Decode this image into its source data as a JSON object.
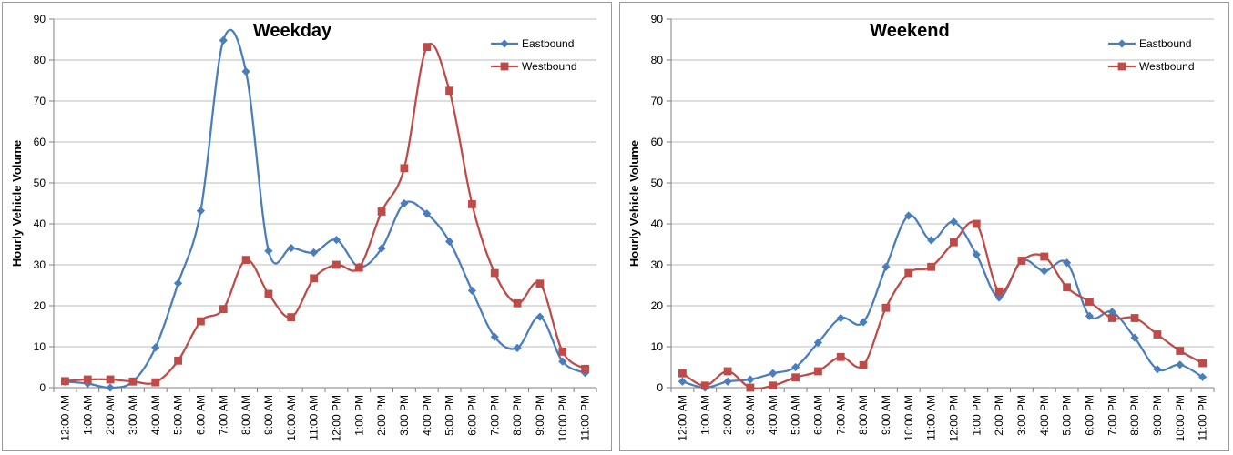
{
  "chart_data": [
    {
      "type": "line",
      "title": "Weekday",
      "ylabel": "Hourly Vehicle Volume",
      "xlabel": "",
      "ylim": [
        0,
        90
      ],
      "yticks": [
        0,
        10,
        20,
        30,
        40,
        50,
        60,
        70,
        80,
        90
      ],
      "grid": true,
      "smooth": true,
      "legend_position": "top-right",
      "categories": [
        "12:00 AM",
        "1:00 AM",
        "2:00 AM",
        "3:00 AM",
        "4:00 AM",
        "5:00 AM",
        "6:00 AM",
        "7:00 AM",
        "8:00 AM",
        "9:00 AM",
        "10:00 AM",
        "11:00 AM",
        "12:00 PM",
        "1:00 PM",
        "2:00 PM",
        "3:00 PM",
        "4:00 PM",
        "5:00 PM",
        "6:00 PM",
        "7:00 PM",
        "8:00 PM",
        "9:00 PM",
        "10:00 PM",
        "11:00 PM"
      ],
      "series": [
        {
          "name": "Eastbound",
          "color": "#4a7ebb",
          "marker": "diamond",
          "values": [
            1.5,
            1,
            0,
            1.5,
            9.8,
            25.5,
            43.2,
            84.8,
            77.2,
            33.4,
            34.1,
            33,
            36.1,
            29.5,
            34,
            45,
            42.5,
            35.7,
            23.7,
            12.4,
            9.7,
            17.3,
            6.4,
            3.6
          ]
        },
        {
          "name": "Westbound",
          "color": "#be4b48",
          "marker": "square",
          "values": [
            1.6,
            2,
            2,
            1.5,
            1.3,
            6.6,
            16.2,
            19.2,
            31.2,
            22.9,
            17.2,
            26.7,
            30,
            29.3,
            43,
            53.6,
            83.2,
            72.5,
            44.8,
            28,
            20.6,
            25.4,
            8.8,
            4.6
          ]
        }
      ]
    },
    {
      "type": "line",
      "title": "Weekend",
      "ylabel": "Hourly Vehicle Volume",
      "xlabel": "",
      "ylim": [
        0,
        90
      ],
      "yticks": [
        0,
        10,
        20,
        30,
        40,
        50,
        60,
        70,
        80,
        90
      ],
      "grid": true,
      "smooth": true,
      "legend_position": "top-right",
      "categories": [
        "12:00 AM",
        "1:00 AM",
        "2:00 AM",
        "3:00 AM",
        "4:00 AM",
        "5:00 AM",
        "6:00 AM",
        "7:00 AM",
        "8:00 AM",
        "9:00 AM",
        "10:00 AM",
        "11:00 AM",
        "12:00 PM",
        "1:00 PM",
        "2:00 PM",
        "3:00 PM",
        "4:00 PM",
        "5:00 PM",
        "6:00 PM",
        "7:00 PM",
        "8:00 PM",
        "9:00 PM",
        "10:00 PM",
        "11:00 PM"
      ],
      "series": [
        {
          "name": "Eastbound",
          "color": "#4a7ebb",
          "marker": "diamond",
          "values": [
            1.5,
            0,
            1.5,
            2,
            3.5,
            5,
            11,
            17,
            16,
            29.5,
            42,
            36,
            40.5,
            32.5,
            22,
            31,
            28.5,
            30.5,
            17.5,
            18.5,
            12.2,
            4.5,
            5.6,
            2.6
          ]
        },
        {
          "name": "Westbound",
          "color": "#be4b48",
          "marker": "square",
          "values": [
            3.5,
            0.5,
            4,
            0,
            0.5,
            2.5,
            4,
            7.5,
            5.5,
            19.5,
            28,
            29.5,
            35.5,
            40,
            23.5,
            31,
            32,
            24.5,
            21,
            17,
            17,
            13,
            9,
            6
          ]
        }
      ]
    }
  ]
}
